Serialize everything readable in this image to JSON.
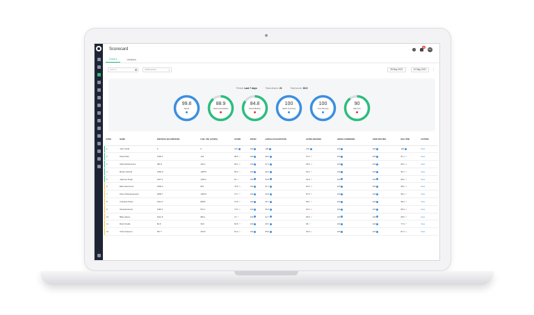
{
  "app": {
    "title": "Scorecard",
    "tabs": [
      "Drivers",
      "Vehicles"
    ],
    "active_tab": 0,
    "search_placeholder": "Search",
    "group_select": "All Branches",
    "date_from": "25 May 2021",
    "date_separator": "-",
    "date_to": "31 May 2021",
    "notification_count": "99",
    "avatar_initials": "BV"
  },
  "summary": {
    "period_label": "Period:",
    "period_value": "Last 7 days",
    "drivers_label": "Total drivers:",
    "drivers_value": "21",
    "score_label": "Total score:",
    "score_value": "63.5",
    "gauges": [
      {
        "value": "99.8",
        "label": "Speed",
        "fill": 0.998,
        "color": "#3b8fe0",
        "mark": "#3b8fe0"
      },
      {
        "value": "88.9",
        "label": "Harsh Acceleration",
        "fill": 0.889,
        "color": "#2dbd7e",
        "mark": "#e53935"
      },
      {
        "value": "84.8",
        "label": "Harsh Braking",
        "fill": 0.848,
        "color": "#2dbd7e",
        "mark": "#e53935"
      },
      {
        "value": "100",
        "label": "Harsh Cornering",
        "fill": 1.0,
        "color": "#3b8fe0",
        "mark": "#3b8fe0"
      },
      {
        "value": "100",
        "label": "Over Revving",
        "fill": 1.0,
        "color": "#3b8fe0",
        "mark": "#3b8fe0"
      },
      {
        "value": "90",
        "label": "Idle Time",
        "fill": 0.9,
        "color": "#2dbd7e",
        "mark": "#e53935"
      }
    ]
  },
  "table": {
    "headers": [
      "RANK",
      "NAME",
      "DISTANCE (KILOMETERS)",
      "FUEL USE (LITERS)",
      "SCORE",
      "SPEED",
      "HARSH ACCELERATION",
      "HARSH BRAKING",
      "HARSH CORNERING",
      "OVER REVVING",
      "IDLE TIME",
      "ACTIONS"
    ],
    "rows": [
      [
        "1",
        "John Smith",
        "0",
        "0",
        "100",
        "100",
        "100",
        "100",
        "100",
        "100",
        "100",
        "View"
      ],
      [
        "2",
        "Paul Parks",
        "1456.1",
        "143",
        "98.5",
        "100",
        "98.2",
        "97.9",
        "100",
        "100",
        "91.1",
        "View"
      ],
      [
        "3",
        "Abdul Mohammed",
        "381.8",
        "119.2",
        "84.4",
        "100",
        "97.4",
        "96.5",
        "100",
        "100",
        "96.2",
        "View"
      ],
      [
        "4",
        "Becky Howard",
        "2464.9",
        "1305.5",
        "83.4",
        "100",
        "90.4",
        "92.2",
        "100",
        "100",
        "96.1",
        "View"
      ],
      [
        "5",
        "Jaspreet Singh",
        "2427.1",
        "1106.2",
        "81",
        "100",
        "93.8",
        "93.8",
        "100",
        "100",
        "99.2",
        "View"
      ],
      [
        "6",
        "Elliot Hammond",
        "1669.3",
        "815",
        "78.5",
        "100",
        "91.7",
        "92.5",
        "100",
        "100",
        "98.2",
        "View"
      ],
      [
        "7",
        "Peter Athanasopoulos",
        "2058.7",
        "1026.5",
        "74.7",
        "100",
        "93.6",
        "87.8",
        "100",
        "100",
        "98.1",
        "View"
      ],
      [
        "8",
        "Christina Porter",
        "1614.2",
        "898.8",
        "73.6",
        "100",
        "96.7",
        "89.1",
        "100",
        "100",
        "98.4",
        "View"
      ],
      [
        "9",
        "Mustafa Akmal",
        "1165.2",
        "547.1",
        "73.3",
        "100",
        "96.6",
        "90.4",
        "100",
        "100",
        "98.4",
        "View"
      ],
      [
        "10",
        "Billie Harper",
        "1612.5",
        "860.1",
        "72",
        "100",
        "92.7",
        "86.8",
        "100",
        "100",
        "98.5",
        "View"
      ],
      [
        "11",
        "Butch Fields",
        "82.8",
        "36.6",
        "56.5",
        "100",
        "98.7",
        "86",
        "100",
        "100",
        "77.9",
        "View"
      ],
      [
        "12",
        "Chris Peterson",
        "607.7",
        "291.8",
        "51.4",
        "100",
        "89.9",
        "90.9",
        "100",
        "100",
        "87.2",
        "View"
      ]
    ],
    "row_accents": [
      "green",
      "green",
      "green",
      "green",
      "green",
      "yellow",
      "yellow",
      "yellow",
      "yellow",
      "yellow",
      "yellow",
      "yellow"
    ]
  },
  "colors": {
    "accent": "#2dbd7e",
    "blue": "#3b8fe0",
    "red": "#e53935",
    "sidebar": "#1d2433"
  }
}
